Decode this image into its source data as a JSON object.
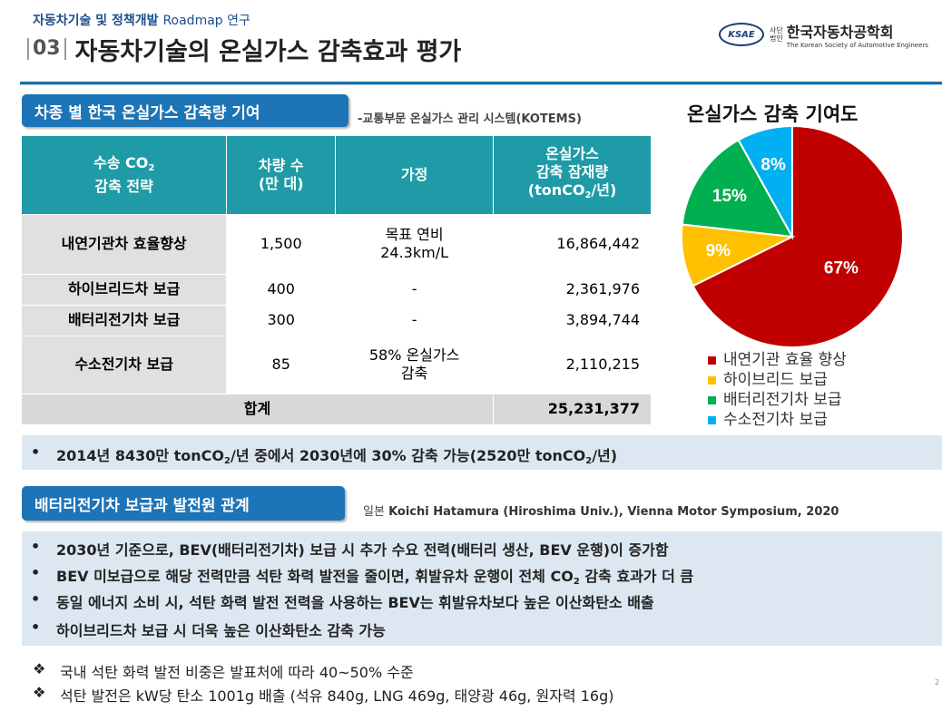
{
  "header": {
    "subtitle_ko": "자동차기술 및 정책개발",
    "subtitle_en": "Roadmap 연구",
    "number": "03",
    "title": "자동차기술의 온실가스 감축효과 평가"
  },
  "logo": {
    "abbr": "KSAE",
    "small": "사단\n법인",
    "name": "한국자동차공학회",
    "en": "The Korean Society of Automotive Engineers"
  },
  "section1": {
    "label": "차종 별 한국 온실가스 감축량 기여",
    "source": "-교통부문 온실가스 관리 시스템(KOTEMS)"
  },
  "table": {
    "headers": {
      "col1_a": "수송 CO",
      "col1_sub": "2",
      "col1_b": "감축 전략",
      "col2_a": "차량 수",
      "col2_b": "(만 대)",
      "col3": "가정",
      "col4_a": "온실가스",
      "col4_b": "감축 잠재량",
      "col4_c1": "(tonCO",
      "col4_sub": "2",
      "col4_c2": "/년)"
    },
    "rows": [
      {
        "strategy": "내연기관차 효율향상",
        "count": "1,500",
        "assumption_a": "목표 연비",
        "assumption_b": "24.3km/L",
        "reduction": "16,864,442"
      },
      {
        "strategy": "하이브리드차 보급",
        "count": "400",
        "assumption_a": "-",
        "assumption_b": "",
        "reduction": "2,361,976"
      },
      {
        "strategy": "배터리전기차 보급",
        "count": "300",
        "assumption_a": "-",
        "assumption_b": "",
        "reduction": "3,894,744"
      },
      {
        "strategy": "수소전기차 보급",
        "count": "85",
        "assumption_a": "58% 온실가스",
        "assumption_b": "감축",
        "reduction": "2,110,215"
      }
    ],
    "total_label": "합계",
    "total_value": "25,231,377"
  },
  "chart_data": {
    "type": "pie",
    "title": "온실가스 감축 기여도",
    "categories": [
      "내연기관 효율 향상",
      "하이브리드 보급",
      "배터리전기차 보급",
      "수소전기차 보급"
    ],
    "values": [
      67,
      9,
      15,
      8
    ],
    "labels": [
      "67%",
      "9%",
      "15%",
      "8%"
    ],
    "colors": [
      "#c00000",
      "#ffc000",
      "#00b050",
      "#00b0f0"
    ],
    "legend_position": "bottom"
  },
  "summary": {
    "bullet": "•",
    "text_a": "2014년 8430만 tonCO",
    "sub1": "2",
    "text_b": "/년 중에서 2030년에 30% 감축 가능(2520만 tonCO",
    "sub2": "2",
    "text_c": "/년)"
  },
  "section2": {
    "label": "배터리전기차 보급과 발전원 관계",
    "source_prefix": "일본",
    "source": "Koichi Hatamura (Hiroshima Univ.), Vienna Motor Symposium, 2020"
  },
  "bullets": [
    "2030년 기준으로, BEV(배터리전기차) 보급 시 추가 수요 전력(배터리 생산, BEV 운행)이 증가함",
    "BEV 미보급으로 해당 전력만큼 석탄 화력 발전을 줄이면, 휘발유차 운행이 전체 CO",
    "동일 에너지 소비 시, 석탄 화력 발전 전력을 사용하는 BEV는 휘발유차보다 높은 이산화탄소 배출",
    "하이브리드차 보급 시 더욱 높은 이산화탄소 감축 가능"
  ],
  "bullet2_sub": "2",
  "bullet2_tail": " 감축 효과가 더 큼",
  "notes": [
    "국내 석탄 화력 발전 비중은 발표처에 따라 40~50% 수준",
    "석탄 발전은 kW당 탄소 1001g 배출 (석유 840g, LNG 469g, 태양광 46g, 원자력 16g)"
  ],
  "note_symbol": "❖",
  "page_number": "2"
}
